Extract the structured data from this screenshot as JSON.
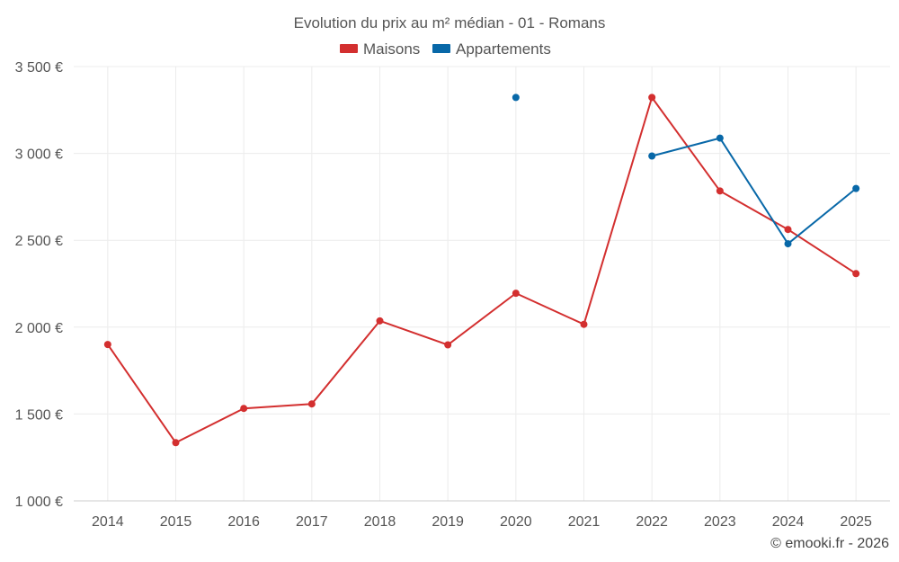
{
  "chart_data": {
    "type": "line",
    "title": "Evolution du prix au m² médian - 01 - Romans",
    "categories": [
      "2014",
      "2015",
      "2016",
      "2017",
      "2018",
      "2019",
      "2020",
      "2021",
      "2022",
      "2023",
      "2024",
      "2025"
    ],
    "series": [
      {
        "name": "Maisons",
        "color": "#d32f2f",
        "values": [
          1900,
          1335,
          1532,
          1558,
          2036,
          1898,
          2195,
          2016,
          3322,
          2784,
          2562,
          2308
        ]
      },
      {
        "name": "Appartements",
        "color": "#0868a8",
        "values": [
          null,
          null,
          null,
          null,
          null,
          null,
          3322,
          null,
          2985,
          3088,
          2480,
          2798
        ]
      }
    ],
    "ylim": [
      1000,
      3500
    ],
    "yticks": [
      {
        "value": 1000,
        "label": "1 000 €"
      },
      {
        "value": 1500,
        "label": "1 500 €"
      },
      {
        "value": 2000,
        "label": "2 000 €"
      },
      {
        "value": 2500,
        "label": "2 500 €"
      },
      {
        "value": 3000,
        "label": "3 000 €"
      },
      {
        "value": 3500,
        "label": "3 500 €"
      }
    ],
    "grid": true,
    "legend_position": "top-center",
    "credit": "© emooki.fr - 2026"
  }
}
